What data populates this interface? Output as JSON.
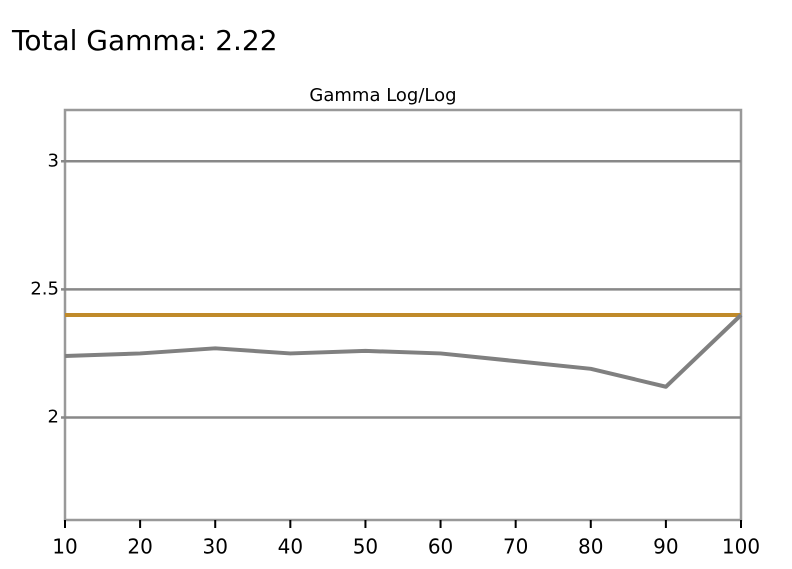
{
  "heading": "Total Gamma: 2.22",
  "chart_data": {
    "type": "line",
    "title": "Gamma Log/Log",
    "x": [
      10,
      20,
      30,
      40,
      50,
      60,
      70,
      80,
      90,
      100
    ],
    "series": [
      {
        "color": "#c08a2a",
        "values": [
          2.4,
          2.4,
          2.4,
          2.4,
          2.4,
          2.4,
          2.4,
          2.4,
          2.4,
          2.4
        ]
      },
      {
        "color": "#808080",
        "values": [
          2.24,
          2.25,
          2.27,
          2.25,
          2.26,
          2.25,
          2.22,
          2.19,
          2.12,
          2.4
        ]
      }
    ],
    "xlim": [
      10,
      100
    ],
    "xticks": [
      10,
      20,
      30,
      40,
      50,
      60,
      70,
      80,
      90,
      100
    ],
    "ylim": [
      1.6,
      3.2
    ],
    "yticks": [
      2,
      2.5,
      3
    ],
    "grid": true
  }
}
